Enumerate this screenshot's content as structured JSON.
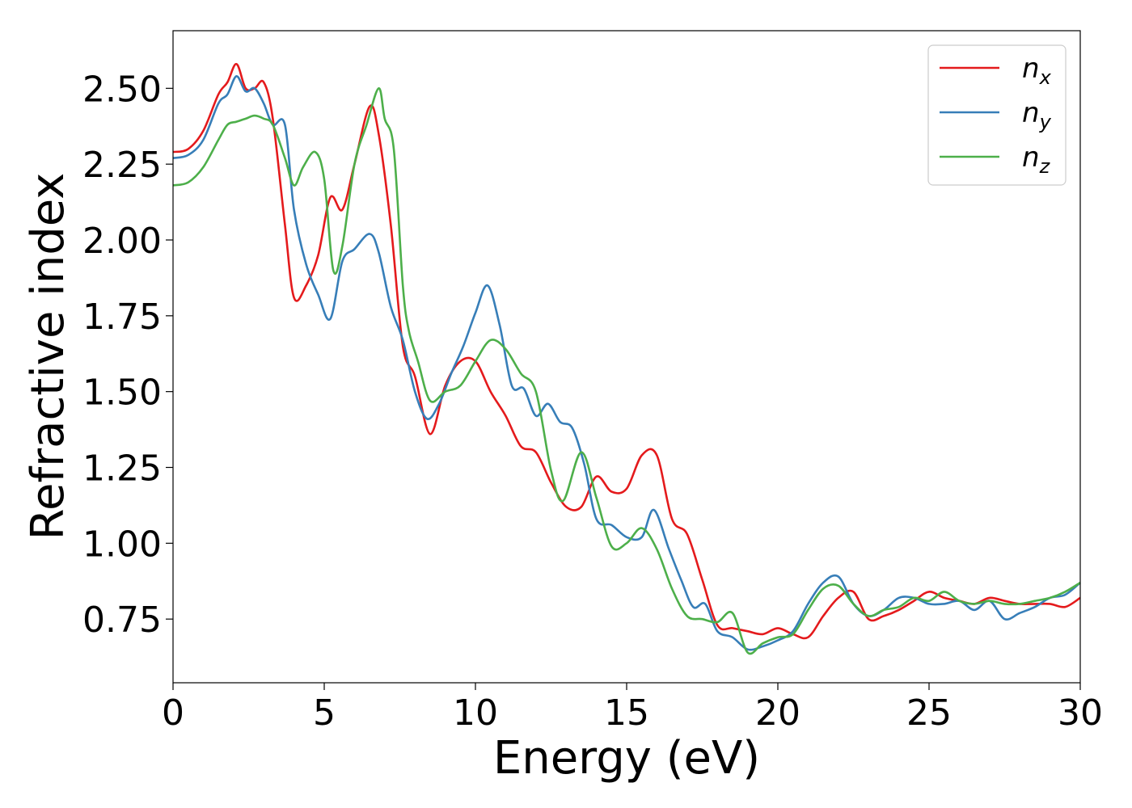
{
  "chart_data": {
    "type": "line",
    "title": "",
    "xlabel": "Energy (eV)",
    "ylabel": "Refractive index",
    "xlim": [
      0,
      30
    ],
    "ylim": [
      0.54,
      2.69
    ],
    "xticks": [
      0,
      5,
      10,
      15,
      20,
      25,
      30
    ],
    "xtick_labels": [
      "0",
      "5",
      "10",
      "15",
      "20",
      "25",
      "30"
    ],
    "yticks": [
      0.75,
      1.0,
      1.25,
      1.5,
      1.75,
      2.0,
      2.25,
      2.5
    ],
    "ytick_labels": [
      "0.75",
      "1.00",
      "1.25",
      "1.50",
      "1.75",
      "2.00",
      "2.25",
      "2.50"
    ],
    "grid": false,
    "legend_position": "top-right",
    "series": [
      {
        "name": "n_x",
        "label_main": "n",
        "label_sub": "x",
        "color": "#e41a1c",
        "x": [
          0,
          0.5,
          1,
          1.5,
          1.8,
          2.1,
          2.4,
          2.7,
          3.0,
          3.3,
          3.7,
          4.0,
          4.4,
          4.8,
          5.2,
          5.6,
          6.0,
          6.5,
          6.8,
          7.2,
          7.6,
          8.0,
          8.5,
          9.0,
          9.5,
          10.0,
          10.5,
          11.0,
          11.5,
          12.0,
          12.5,
          13.0,
          13.5,
          14.0,
          14.5,
          15.0,
          15.5,
          16.0,
          16.5,
          17.0,
          17.5,
          18.0,
          18.5,
          19.0,
          19.5,
          20.0,
          20.5,
          21.0,
          21.5,
          22.0,
          22.5,
          23.0,
          23.5,
          24.0,
          24.5,
          25.0,
          25.5,
          26.0,
          26.5,
          27.0,
          27.5,
          28.0,
          28.5,
          29.0,
          29.5,
          30.0
        ],
        "y": [
          2.29,
          2.3,
          2.36,
          2.48,
          2.52,
          2.58,
          2.5,
          2.5,
          2.52,
          2.4,
          2.05,
          1.81,
          1.85,
          1.95,
          2.14,
          2.1,
          2.25,
          2.44,
          2.35,
          2.05,
          1.65,
          1.55,
          1.36,
          1.52,
          1.6,
          1.6,
          1.5,
          1.42,
          1.32,
          1.3,
          1.2,
          1.12,
          1.12,
          1.22,
          1.17,
          1.18,
          1.29,
          1.29,
          1.08,
          1.03,
          0.88,
          0.73,
          0.72,
          0.71,
          0.7,
          0.72,
          0.7,
          0.69,
          0.76,
          0.82,
          0.84,
          0.75,
          0.76,
          0.78,
          0.81,
          0.84,
          0.82,
          0.81,
          0.8,
          0.82,
          0.81,
          0.8,
          0.8,
          0.8,
          0.79,
          0.82
        ]
      },
      {
        "name": "n_y",
        "label_main": "n",
        "label_sub": "y",
        "color": "#377eb8",
        "x": [
          0,
          0.5,
          1,
          1.5,
          1.8,
          2.1,
          2.4,
          2.7,
          3.0,
          3.3,
          3.7,
          4.0,
          4.4,
          4.8,
          5.2,
          5.6,
          6.0,
          6.5,
          6.8,
          7.2,
          7.6,
          8.0,
          8.4,
          8.8,
          9.2,
          9.6,
          10.0,
          10.4,
          10.8,
          11.2,
          11.6,
          12.0,
          12.4,
          12.8,
          13.2,
          13.6,
          14.0,
          14.5,
          15.0,
          15.5,
          15.9,
          16.4,
          16.8,
          17.2,
          17.6,
          18.0,
          18.5,
          19.0,
          19.5,
          20.0,
          20.5,
          21.0,
          21.5,
          22.0,
          22.5,
          23.0,
          23.5,
          24.0,
          24.5,
          25.0,
          25.5,
          26.0,
          26.5,
          27.0,
          27.5,
          28.0,
          28.5,
          29.0,
          29.5,
          30.0
        ],
        "y": [
          2.27,
          2.28,
          2.33,
          2.45,
          2.48,
          2.54,
          2.49,
          2.5,
          2.45,
          2.38,
          2.38,
          2.1,
          1.92,
          1.82,
          1.74,
          1.93,
          1.97,
          2.02,
          1.96,
          1.78,
          1.67,
          1.5,
          1.41,
          1.46,
          1.56,
          1.65,
          1.76,
          1.85,
          1.72,
          1.52,
          1.51,
          1.42,
          1.46,
          1.4,
          1.38,
          1.26,
          1.08,
          1.06,
          1.02,
          1.02,
          1.11,
          0.98,
          0.88,
          0.79,
          0.8,
          0.71,
          0.69,
          0.65,
          0.66,
          0.68,
          0.71,
          0.8,
          0.87,
          0.89,
          0.8,
          0.76,
          0.78,
          0.82,
          0.82,
          0.8,
          0.8,
          0.81,
          0.78,
          0.81,
          0.75,
          0.77,
          0.79,
          0.82,
          0.83,
          0.87
        ]
      },
      {
        "name": "n_z",
        "label_main": "n",
        "label_sub": "z",
        "color": "#4daf4a",
        "x": [
          0,
          0.5,
          1,
          1.5,
          1.8,
          2.1,
          2.4,
          2.7,
          3.0,
          3.3,
          3.7,
          4.0,
          4.3,
          4.7,
          5.0,
          5.3,
          5.6,
          6.0,
          6.4,
          6.8,
          7.0,
          7.3,
          7.6,
          7.8,
          8.1,
          8.5,
          9.0,
          9.5,
          10.0,
          10.5,
          11.0,
          11.5,
          12.0,
          12.5,
          12.9,
          13.5,
          14.0,
          14.5,
          15.0,
          15.5,
          16.0,
          16.5,
          17.0,
          17.5,
          18.0,
          18.5,
          19.0,
          19.5,
          20.0,
          20.5,
          21.0,
          21.5,
          22.0,
          22.5,
          23.0,
          23.5,
          24.0,
          24.5,
          25.0,
          25.5,
          26.0,
          26.5,
          27.0,
          27.5,
          28.0,
          28.5,
          29.0,
          29.5,
          30.0
        ],
        "y": [
          2.18,
          2.19,
          2.24,
          2.33,
          2.38,
          2.39,
          2.4,
          2.41,
          2.4,
          2.38,
          2.27,
          2.18,
          2.24,
          2.29,
          2.2,
          1.9,
          1.98,
          2.25,
          2.38,
          2.5,
          2.4,
          2.3,
          1.85,
          1.7,
          1.6,
          1.47,
          1.5,
          1.52,
          1.6,
          1.67,
          1.64,
          1.56,
          1.5,
          1.24,
          1.14,
          1.3,
          1.15,
          0.99,
          1.0,
          1.05,
          0.98,
          0.85,
          0.76,
          0.75,
          0.74,
          0.77,
          0.64,
          0.67,
          0.69,
          0.7,
          0.78,
          0.85,
          0.86,
          0.8,
          0.76,
          0.78,
          0.79,
          0.82,
          0.81,
          0.84,
          0.81,
          0.8,
          0.81,
          0.8,
          0.8,
          0.81,
          0.82,
          0.84,
          0.87
        ]
      }
    ]
  }
}
